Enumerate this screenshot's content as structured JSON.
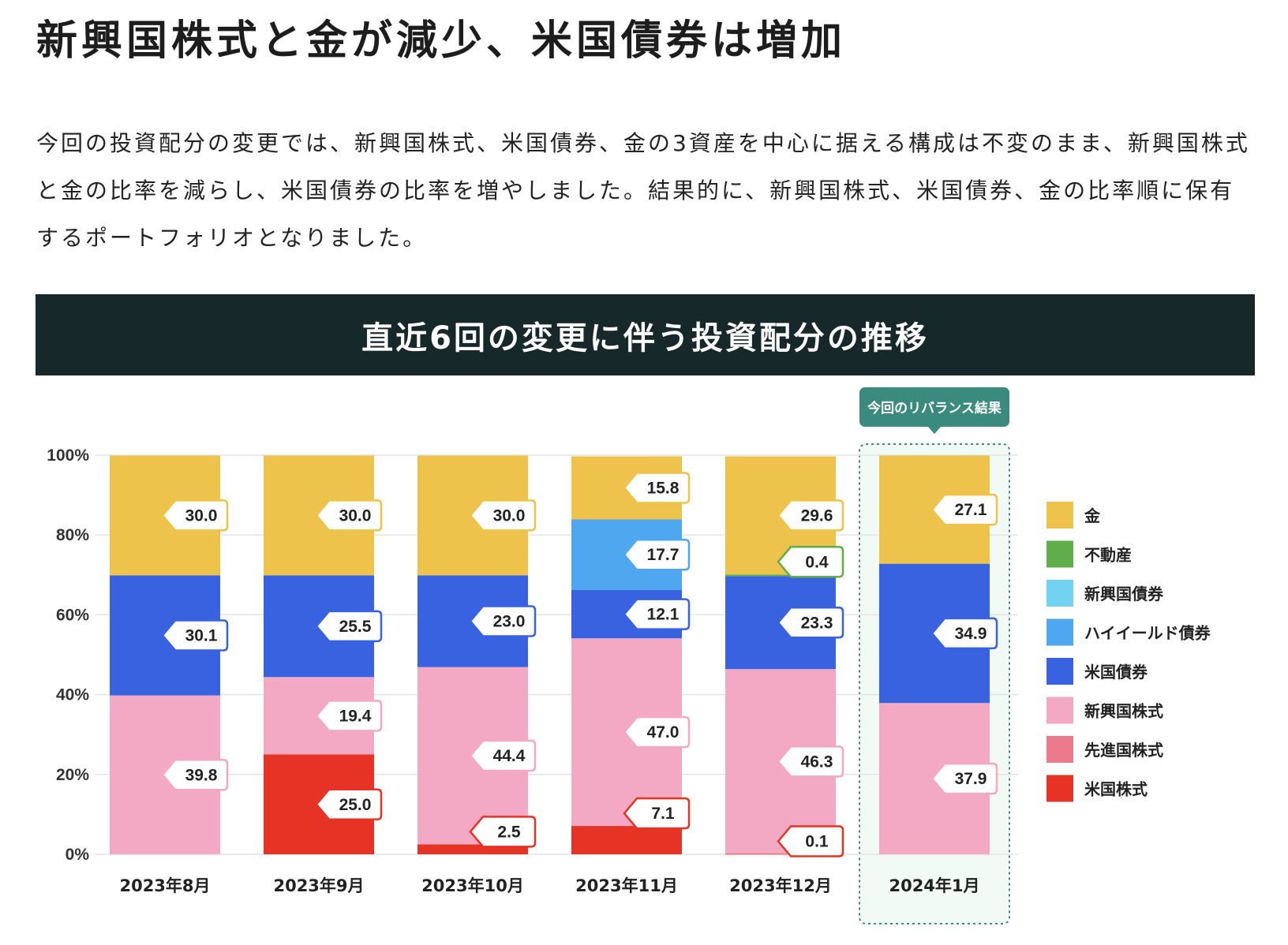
{
  "headline": "新興国株式と金が減少、米国債券は増加",
  "paragraph": "今回の投資配分の変更では、新興国株式、米国債券、金の3資産を中心に据える構成は不変のまま、新興国株式と金の比率を減らし、米国債券の比率を増やしました。結果的に、新興国株式、米国債券、金の比率順に保有するポートフォリオとなりました。",
  "banner_title": "直近6回の変更に伴う投資配分の推移",
  "callout": "今回のリバランス結果",
  "chart_data": {
    "type": "bar",
    "stacked": true,
    "categories": [
      "2023年8月",
      "2023年9月",
      "2023年10月",
      "2023年11月",
      "2023年12月",
      "2024年1月"
    ],
    "ylim": [
      0,
      100
    ],
    "ytick_labels": [
      "0%",
      "20%",
      "40%",
      "60%",
      "80%",
      "100%"
    ],
    "grid": true,
    "legend_position": "right",
    "highlight_category": "2024年1月",
    "series": [
      {
        "name": "米国株式",
        "color": "#e63325",
        "values": [
          0,
          25.0,
          2.5,
          7.1,
          0.1,
          0
        ],
        "labels": [
          null,
          "25.0",
          "2.5",
          "7.1",
          "0.1",
          null
        ]
      },
      {
        "name": "先進国株式",
        "color": "#ec7a8c",
        "values": [
          0,
          0,
          0,
          0,
          0,
          0
        ],
        "labels": [
          null,
          null,
          null,
          null,
          null,
          null
        ]
      },
      {
        "name": "新興国株式",
        "color": "#f3a9c3",
        "values": [
          39.8,
          19.4,
          44.4,
          47.0,
          46.3,
          37.9
        ],
        "labels": [
          "39.8",
          "19.4",
          "44.4",
          "47.0",
          "46.3",
          "37.9"
        ]
      },
      {
        "name": "米国債券",
        "color": "#3862e0",
        "values": [
          30.1,
          25.5,
          23.0,
          12.1,
          23.3,
          34.9
        ],
        "labels": [
          "30.1",
          "25.5",
          "23.0",
          "12.1",
          "23.3",
          "34.9"
        ]
      },
      {
        "name": "ハイイールド債券",
        "color": "#4ea7ef",
        "values": [
          0,
          0,
          0,
          17.7,
          0,
          0
        ],
        "labels": [
          null,
          null,
          null,
          "17.7",
          null,
          null
        ]
      },
      {
        "name": "新興国債券",
        "color": "#73d1f2",
        "values": [
          0,
          0,
          0,
          0,
          0,
          0
        ],
        "labels": [
          null,
          null,
          null,
          null,
          null,
          null
        ]
      },
      {
        "name": "不動産",
        "color": "#62ad4b",
        "values": [
          0,
          0,
          0,
          0,
          0.4,
          0
        ],
        "labels": [
          null,
          null,
          null,
          null,
          "0.4",
          null
        ]
      },
      {
        "name": "金",
        "color": "#eec34c",
        "values": [
          30.0,
          30.0,
          30.0,
          15.8,
          29.6,
          27.1
        ],
        "labels": [
          "30.0",
          "30.0",
          "30.0",
          "15.8",
          "29.6",
          "27.1"
        ]
      }
    ],
    "legend_order": [
      "金",
      "不動産",
      "新興国債券",
      "ハイイールド債券",
      "米国債券",
      "新興国株式",
      "先進国株式",
      "米国株式"
    ]
  }
}
